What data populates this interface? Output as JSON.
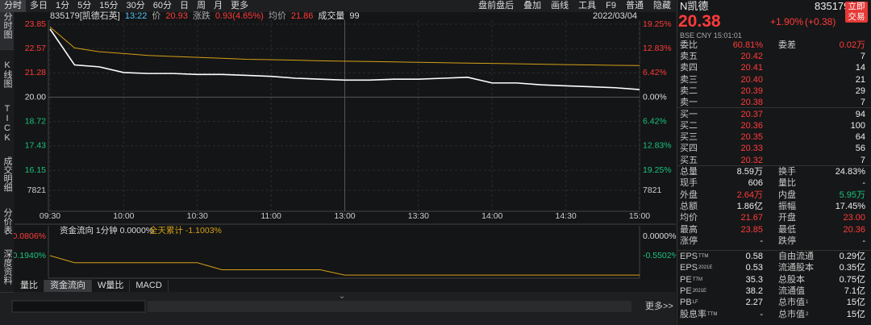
{
  "sidebar": [
    "分时图",
    "K线图",
    "TICK",
    "成交明细",
    "分价表",
    "深度资料"
  ],
  "toolbar": {
    "left": [
      "分时",
      "多日",
      "1分",
      "5分",
      "15分",
      "30分",
      "60分",
      "日",
      "周",
      "月",
      "更多"
    ],
    "right": [
      "盘前盘后",
      "叠加",
      "画线",
      "工具",
      "F9",
      "普通",
      "隐藏"
    ]
  },
  "info": {
    "code": "835179[凯德石英]",
    "time": "13:22",
    "price_label": "价",
    "price": "20.93",
    "change_label": "涨跌",
    "change": "0.93(4.65%)",
    "avg_label": "均价",
    "avg": "21.86",
    "vol_label": "成交量",
    "vol": "99",
    "date": "2022/03/04"
  },
  "chart_data": {
    "type": "line",
    "x": [
      "09:30",
      "09:40",
      "09:50",
      "10:00",
      "10:10",
      "10:20",
      "10:30",
      "10:40",
      "10:50",
      "11:00",
      "11:10",
      "11:20",
      "13:00",
      "13:10",
      "13:20",
      "13:30",
      "13:40",
      "13:50",
      "14:00",
      "14:10",
      "14:20",
      "14:30",
      "14:40",
      "14:50",
      "15:00"
    ],
    "series": [
      {
        "name": "价",
        "color": "#ffffff",
        "values": [
          23.6,
          21.7,
          21.6,
          21.3,
          21.25,
          21.25,
          21.2,
          21.2,
          21.15,
          21.1,
          21.0,
          20.95,
          20.9,
          20.9,
          20.95,
          20.95,
          21.0,
          21.05,
          20.75,
          20.75,
          20.65,
          20.6,
          20.55,
          20.5,
          20.4
        ]
      },
      {
        "name": "均价",
        "color": "#d4a017",
        "values": [
          23.7,
          22.6,
          22.4,
          22.3,
          22.2,
          22.15,
          22.1,
          22.05,
          22.0,
          21.98,
          21.95,
          21.92,
          21.9,
          21.88,
          21.86,
          21.84,
          21.82,
          21.8,
          21.78,
          21.76,
          21.74,
          21.72,
          21.7,
          21.68,
          21.67
        ]
      }
    ],
    "xticks": [
      "09:30",
      "10:00",
      "10:30",
      "11:00",
      "13:00",
      "13:30",
      "14:00",
      "14:30",
      "15:00"
    ],
    "ylim": [
      16.15,
      23.85
    ],
    "yticks": [
      23.85,
      22.57,
      21.28,
      {
        "value": 20,
        "label": "20.00"
      },
      18.72,
      17.43,
      16.15
    ],
    "y2lim": [
      -19.25,
      19.25
    ],
    "y2ticks": [
      {
        "value": 19.25,
        "label": "19.25%"
      },
      {
        "value": 12.83,
        "label": "12.83%"
      },
      {
        "value": 6.42,
        "label": "6.42%"
      },
      {
        "value": 0,
        "label": "0.00%"
      },
      {
        "value": -6.42,
        "label": "6.42%"
      },
      {
        "value": -12.83,
        "label": "12.83%"
      },
      {
        "value": -19.25,
        "label": "19.25%"
      }
    ],
    "vlim": [
      0,
      7821
    ],
    "vticks": [
      7821
    ],
    "grid": true
  },
  "flow": {
    "title": "资金流向 1分钟 0.0000%",
    "total": "全天累计 -1.1003%",
    "left_ticks": [
      "0.0806%",
      "-0.1940%"
    ],
    "ylim": [
      -1.19,
      0
    ],
    "y2ticks": [
      {
        "value": 0,
        "label": "0.0000%"
      },
      {
        "value": -0.5502,
        "label": "-0.5502%"
      }
    ],
    "color": "#d4a017",
    "values": [
      -0.55,
      -0.75,
      -0.75,
      -0.75,
      -0.75,
      -0.75,
      -0.75,
      -0.95,
      -0.95,
      -0.95,
      -0.95,
      -0.95,
      -1.1,
      -1.1,
      -1.1,
      -1.1,
      -1.1,
      -1.1,
      -1.1,
      -1.1,
      -1.1,
      -1.1,
      -1.1,
      -1.1,
      -1.1003
    ]
  },
  "bottom_tabs": [
    "量比",
    "资金流向",
    "W量比",
    "MACD"
  ],
  "more": "更多>>",
  "quote": {
    "name": "N凯德",
    "code": "835179",
    "price": "20.38",
    "pct": "+1.90%",
    "chg": "(+0.38)",
    "trade": "立即交易",
    "meta": "BSE  CNY  15:01:01",
    "ratio_label": "委比",
    "ratio": "60.81%",
    "diff_label": "委差",
    "diff": "0.02万",
    "asks": [
      [
        "卖五",
        "20.42",
        "7"
      ],
      [
        "卖四",
        "20.41",
        "14"
      ],
      [
        "卖三",
        "20.40",
        "21"
      ],
      [
        "卖二",
        "20.39",
        "29"
      ],
      [
        "卖一",
        "20.38",
        "7"
      ]
    ],
    "bids": [
      [
        "买一",
        "20.37",
        "94"
      ],
      [
        "买二",
        "20.36",
        "100"
      ],
      [
        "买三",
        "20.35",
        "64"
      ],
      [
        "买四",
        "20.33",
        "56"
      ],
      [
        "买五",
        "20.32",
        "7"
      ]
    ],
    "stats": [
      [
        {
          "label": "总量",
          "value": "8.59万"
        },
        {
          "label": "换手",
          "value": "24.83%"
        }
      ],
      [
        {
          "label": "现手",
          "value": "606"
        },
        {
          "label": "量比",
          "value": "-"
        }
      ],
      [
        {
          "label": "外盘",
          "value": "2.64万",
          "tone": "up"
        },
        {
          "label": "内盘",
          "value": "5.95万",
          "tone": "down"
        }
      ],
      [
        {
          "label": "总额",
          "value": "1.86亿"
        },
        {
          "label": "振幅",
          "value": "17.45%"
        }
      ],
      [
        {
          "label": "均价",
          "value": "21.67",
          "tone": "up"
        },
        {
          "label": "开盘",
          "value": "23.00",
          "tone": "up"
        }
      ],
      [
        {
          "label": "最高",
          "value": "23.85",
          "tone": "up"
        },
        {
          "label": "最低",
          "value": "20.36",
          "tone": "up"
        }
      ],
      [
        {
          "label": "涨停",
          "value": "-"
        },
        {
          "label": "跌停",
          "value": "-"
        }
      ]
    ],
    "fundamentals": [
      [
        {
          "label": "EPS",
          "sup": "TTM",
          "value": "0.58"
        },
        {
          "label": "自由流通",
          "value": "0.29亿"
        }
      ],
      [
        {
          "label": "EPS",
          "sup": "2021E",
          "value": "0.53"
        },
        {
          "label": "流通股本",
          "value": "0.35亿"
        }
      ],
      [
        {
          "label": "PE",
          "sup": "TTM",
          "value": "35.3"
        },
        {
          "label": "总股本",
          "value": "0.75亿"
        }
      ],
      [
        {
          "label": "PE",
          "sup": "2021E",
          "value": "38.2"
        },
        {
          "label": "流通值",
          "value": "7.1亿"
        }
      ],
      [
        {
          "label": "PB",
          "sup": "LF",
          "value": "2.27"
        },
        {
          "label": "总市值",
          "sup": "1",
          "value": "15亿"
        }
      ],
      [
        {
          "label": "股息率",
          "sup": "TTM",
          "value": "-"
        },
        {
          "label": "总市值",
          "sup": "2",
          "value": "15亿"
        }
      ]
    ]
  }
}
